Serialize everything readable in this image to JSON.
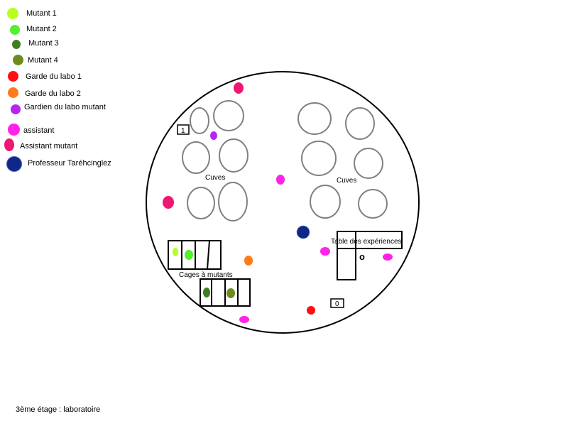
{
  "legend": [
    {
      "label": "Mutant 1",
      "color": "#b7ff1e"
    },
    {
      "label": "Mutant 2",
      "color": "#52f02d"
    },
    {
      "label": "Mutant 3",
      "color": "#3f7f1f"
    },
    {
      "label": "Mutant 4",
      "color": "#6e8c1e"
    },
    {
      "label": "Garde du labo 1",
      "color": "#ff1010"
    },
    {
      "label": "Garde du labo 2",
      "color": "#ff7a1a"
    },
    {
      "label": "Gardien du labo mutant",
      "color": "#b626f2"
    },
    {
      "label": "assistant",
      "color": "#ff22e8"
    },
    {
      "label": "Assistant mutant",
      "color": "#ee1870"
    },
    {
      "label": "Professeur Taréhcinglez",
      "color": "#0f2787"
    }
  ],
  "plan": {
    "left_tanks_label": "Cuves",
    "right_tanks_label": "Cuves",
    "cages_label": "Cages à mutants",
    "table_label": "Table des expériences",
    "door_left_label": "1",
    "door_bottom_label": "0",
    "table_mark": "o"
  },
  "floor_label": "3ème étage : laboratoire"
}
